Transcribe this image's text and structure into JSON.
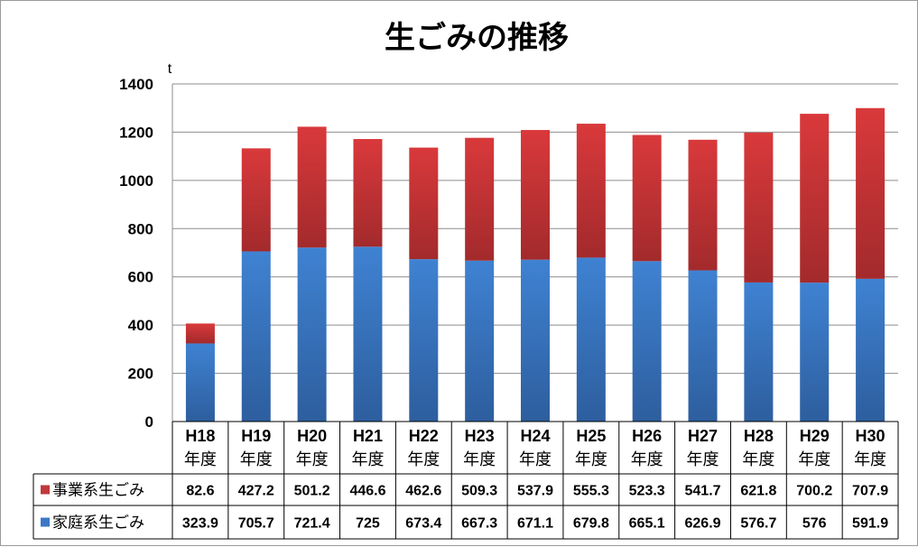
{
  "chart_data": {
    "type": "bar",
    "stacked": true,
    "title": "生ごみの推移",
    "unit": "t",
    "ylim": [
      0,
      1400
    ],
    "yticks": [
      0,
      200,
      400,
      600,
      800,
      1000,
      1200,
      1400
    ],
    "grid": true,
    "legend": "table-left",
    "categories": [
      {
        "era": "H18",
        "suffix": "年度"
      },
      {
        "era": "H19",
        "suffix": "年度"
      },
      {
        "era": "H20",
        "suffix": "年度"
      },
      {
        "era": "H21",
        "suffix": "年度"
      },
      {
        "era": "H22",
        "suffix": "年度"
      },
      {
        "era": "H23",
        "suffix": "年度"
      },
      {
        "era": "H24",
        "suffix": "年度"
      },
      {
        "era": "H25",
        "suffix": "年度"
      },
      {
        "era": "H26",
        "suffix": "年度"
      },
      {
        "era": "H27",
        "suffix": "年度"
      },
      {
        "era": "H28",
        "suffix": "年度"
      },
      {
        "era": "H29",
        "suffix": "年度"
      },
      {
        "era": "H30",
        "suffix": "年度"
      }
    ],
    "series": [
      {
        "name": "事業系生ごみ",
        "color": "#c0393b",
        "values": [
          82.6,
          427.2,
          501.2,
          446.6,
          462.6,
          509.3,
          537.9,
          555.3,
          523.3,
          541.7,
          621.8,
          700.2,
          707.9
        ],
        "labels": [
          "82.6",
          "427.2",
          "501.2",
          "446.6",
          "462.6",
          "509.3",
          "537.9",
          "555.3",
          "523.3",
          "541.7",
          "621.8",
          "700.2",
          "707.9"
        ]
      },
      {
        "name": "家庭系生ごみ",
        "color": "#3a78c7",
        "values": [
          323.9,
          705.7,
          721.4,
          725,
          673.4,
          667.3,
          671.1,
          679.8,
          665.1,
          626.9,
          576.7,
          576,
          591.9
        ],
        "labels": [
          "323.9",
          "705.7",
          "721.4",
          "725",
          "673.4",
          "667.3",
          "671.1",
          "679.8",
          "665.1",
          "626.9",
          "576.7",
          "576",
          "591.9"
        ]
      }
    ]
  }
}
